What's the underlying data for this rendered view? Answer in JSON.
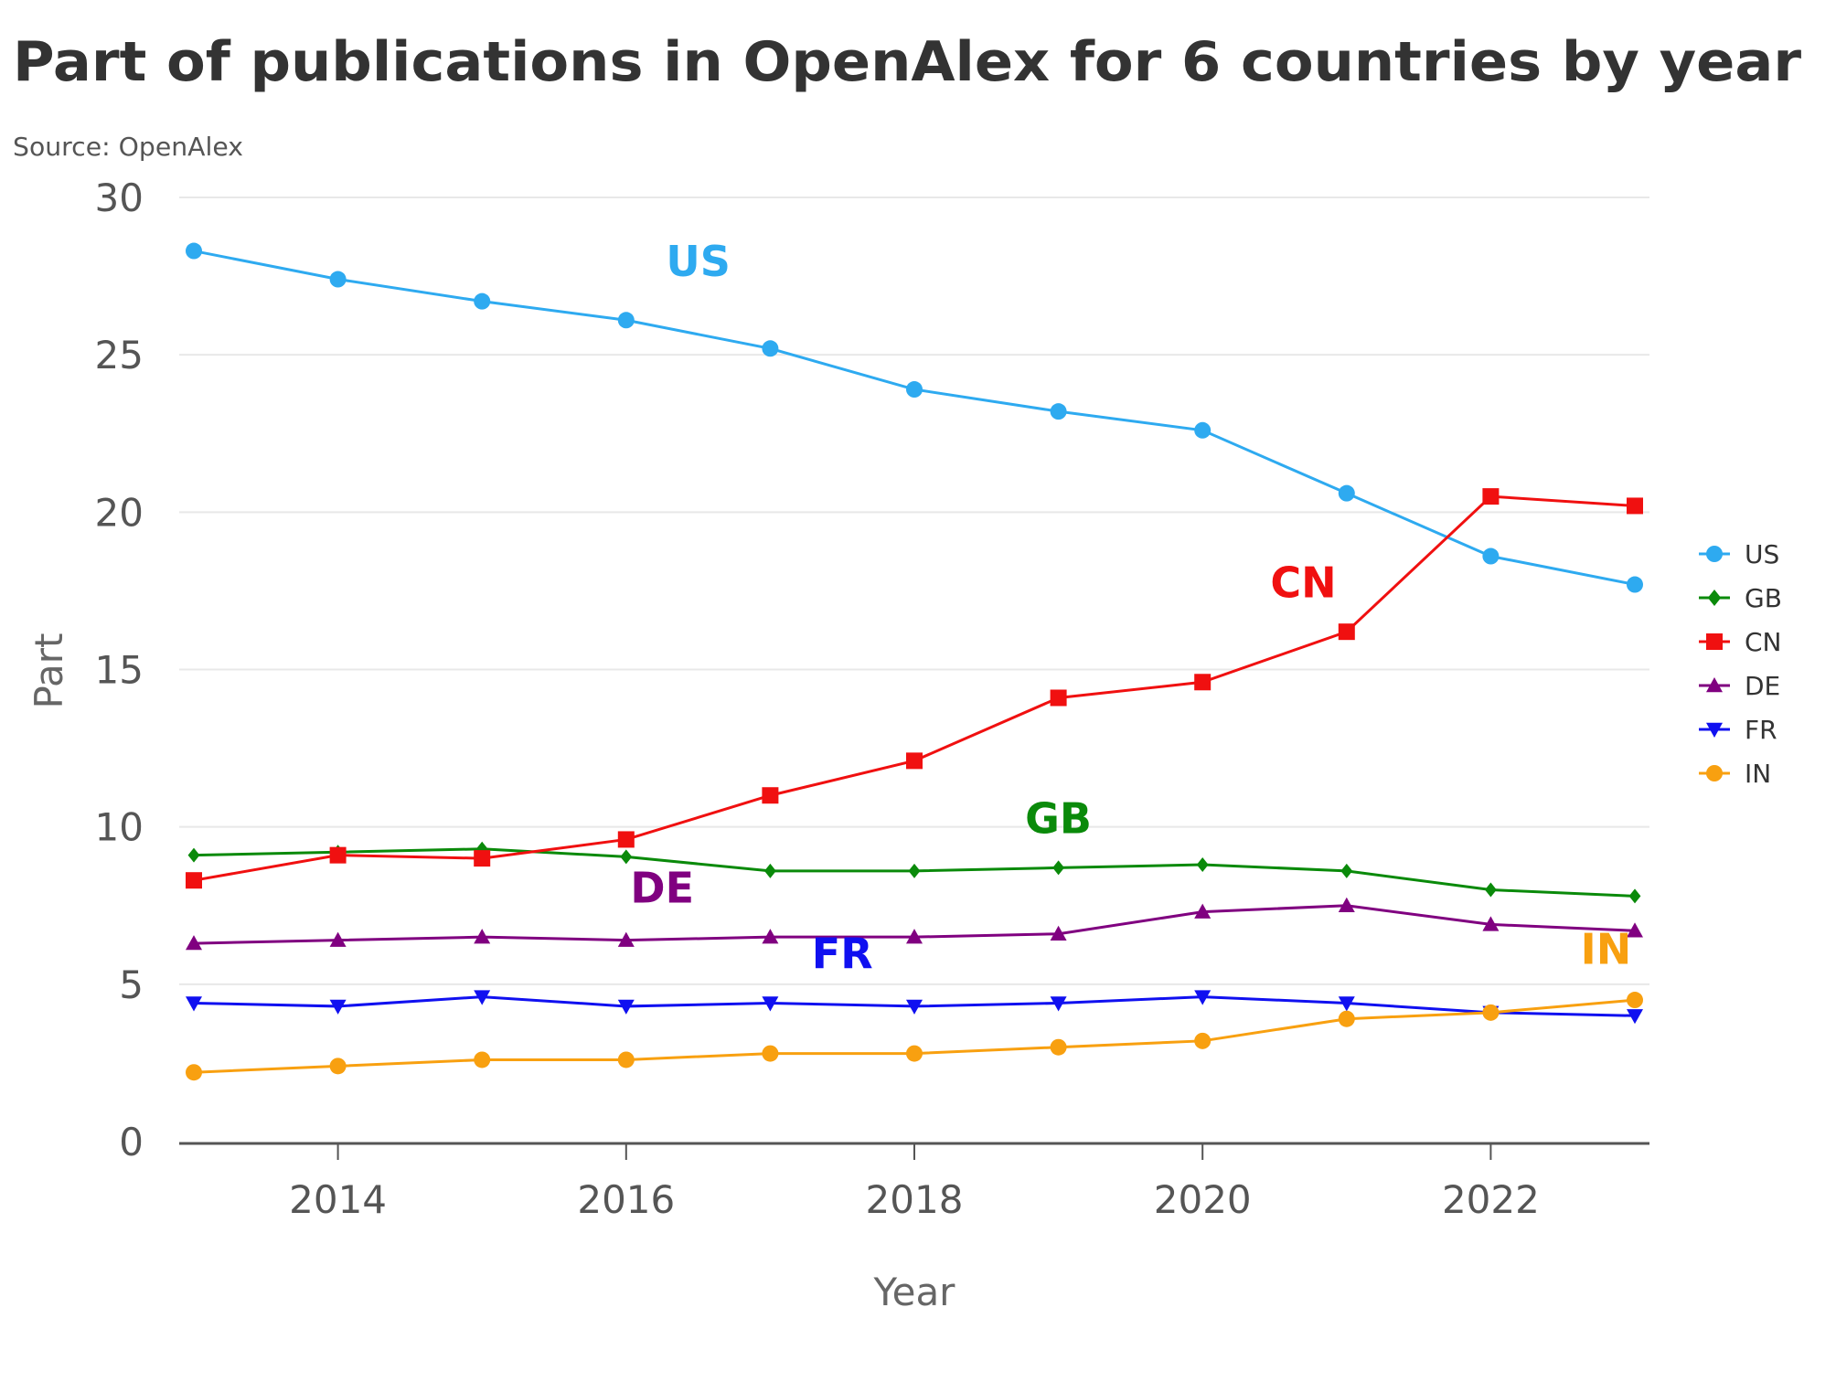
{
  "chart_data": {
    "type": "line",
    "title": "Part of publications in OpenAlex for 6 countries by year",
    "subtitle": "Source: OpenAlex",
    "xlabel": "Year",
    "ylabel": "Part",
    "xlim": [
      2013,
      2023
    ],
    "ylim": [
      0,
      30
    ],
    "x_ticks": [
      2014,
      2016,
      2018,
      2020,
      2022
    ],
    "y_ticks": [
      0,
      5,
      10,
      15,
      20,
      25,
      30
    ],
    "grid": "horizontal",
    "legend": "right",
    "x": [
      2013,
      2014,
      2015,
      2016,
      2017,
      2018,
      2019,
      2020,
      2021,
      2022,
      2023
    ],
    "series": [
      {
        "name": "US",
        "color": "#2eaaf0",
        "marker": "circle",
        "label_at": [
          2016.5,
          27.5
        ],
        "values": [
          28.3,
          27.4,
          26.7,
          26.1,
          25.2,
          23.9,
          23.2,
          22.6,
          20.6,
          18.6,
          17.7
        ]
      },
      {
        "name": "GB",
        "color": "#0a8a0a",
        "marker": "diamond",
        "label_at": [
          2019.0,
          9.8
        ],
        "values": [
          9.1,
          9.2,
          9.3,
          9.05,
          8.6,
          8.6,
          8.7,
          8.8,
          8.6,
          8.0,
          7.8
        ]
      },
      {
        "name": "CN",
        "color": "#f01010",
        "marker": "square",
        "label_at": [
          2020.7,
          17.3
        ],
        "values": [
          8.3,
          9.1,
          9.0,
          9.6,
          11.0,
          12.1,
          14.1,
          14.6,
          16.2,
          20.5,
          20.2
        ]
      },
      {
        "name": "DE",
        "color": "#800080",
        "marker": "triangle",
        "label_at": [
          2016.25,
          7.6
        ],
        "values": [
          6.3,
          6.4,
          6.5,
          6.4,
          6.5,
          6.5,
          6.6,
          7.3,
          7.5,
          6.9,
          6.7
        ]
      },
      {
        "name": "FR",
        "color": "#1010f0",
        "marker": "triangle-down",
        "label_at": [
          2017.5,
          5.5
        ],
        "values": [
          4.4,
          4.3,
          4.6,
          4.3,
          4.4,
          4.3,
          4.4,
          4.6,
          4.4,
          4.1,
          4.0
        ]
      },
      {
        "name": "IN",
        "color": "#f8a010",
        "marker": "circle",
        "label_at": [
          2022.8,
          5.65
        ],
        "values": [
          2.2,
          2.4,
          2.6,
          2.6,
          2.8,
          2.8,
          3.0,
          3.2,
          3.9,
          4.1,
          4.5
        ]
      }
    ]
  }
}
